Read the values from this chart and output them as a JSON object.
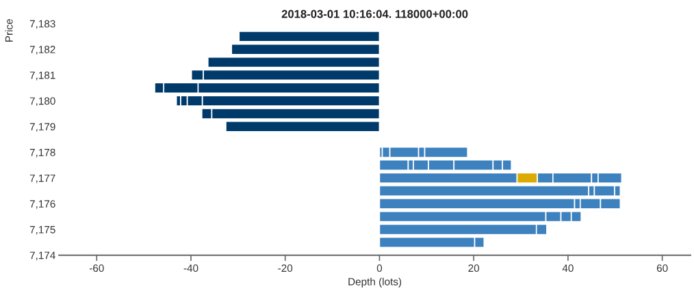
{
  "chart_data": {
    "type": "bar",
    "orientation": "horizontal",
    "stacked": true,
    "title": "2018-03-01 10:16:04. 118000+00:00",
    "xlabel": "Depth (lots)",
    "ylabel": "Price",
    "x": [
      7174.5,
      7175,
      7175.5,
      7176,
      7176.5,
      7177,
      7177.5,
      7178,
      7179,
      7179.5,
      7180,
      7180.5,
      7181,
      7181.5,
      7182,
      7182.5
    ],
    "series": [
      {
        "color": "#3d81be",
        "values": [
          20.2,
          33.3,
          35.3,
          41.4,
          44.4,
          29.2,
          6.1,
          0.6,
          null,
          null,
          null,
          null,
          null,
          null,
          null,
          null
        ]
      },
      {
        "colors": [
          "#3d81be",
          "#3d81be",
          "#3d81be",
          "#3d81be",
          "#3d81be",
          "#dcaa00",
          "#3d81be",
          "#3d81be",
          null,
          null,
          null,
          null,
          null,
          null,
          null,
          null
        ],
        "values": [
          2.0,
          2.2,
          3.2,
          1.2,
          1.2,
          4.3,
          1.1,
          1.6,
          null,
          null,
          null,
          null,
          null,
          null,
          null,
          null
        ]
      },
      {
        "color": "#3d81be",
        "values": [
          null,
          null,
          2.2,
          4.3,
          4.3,
          3.3,
          3.2,
          6.1,
          null,
          null,
          null,
          null,
          null,
          null,
          null,
          null
        ]
      },
      {
        "color": "#3d81be",
        "values": [
          null,
          null,
          2.1,
          4.2,
          1.2,
          8.2,
          5.4,
          1.3,
          null,
          null,
          null,
          null,
          null,
          null,
          null,
          null
        ]
      },
      {
        "color": "#3d81be",
        "values": [
          null,
          null,
          null,
          null,
          null,
          1.4,
          8.3,
          9.1,
          null,
          null,
          null,
          null,
          null,
          null,
          null,
          null
        ]
      },
      {
        "color": "#3d81be",
        "values": [
          null,
          null,
          null,
          null,
          null,
          5.0,
          2.0,
          null,
          null,
          null,
          null,
          null,
          null,
          null,
          null,
          null
        ]
      },
      {
        "color": "#3d81be",
        "values": [
          null,
          null,
          null,
          null,
          null,
          null,
          1.9,
          null,
          null,
          null,
          null,
          null,
          null,
          null,
          null,
          null
        ]
      },
      {
        "color": "#003a6b",
        "values": [
          null,
          null,
          null,
          null,
          null,
          null,
          null,
          null,
          -32.6,
          -35.6,
          -37.6,
          -38.5,
          -37.4,
          -36.4,
          -31.4,
          -29.8
        ]
      },
      {
        "color": "#003a6b",
        "values": [
          null,
          null,
          null,
          null,
          null,
          null,
          null,
          null,
          null,
          -2.1,
          -3.2,
          -7.3,
          -2.5,
          null,
          null,
          null
        ]
      },
      {
        "color": "#003a6b",
        "values": [
          null,
          null,
          null,
          null,
          null,
          null,
          null,
          null,
          null,
          null,
          -1.4,
          -1.9,
          null,
          null,
          null,
          null
        ]
      },
      {
        "color": "#003a6b",
        "values": [
          null,
          null,
          null,
          null,
          null,
          null,
          null,
          null,
          null,
          null,
          -0.9,
          null,
          null,
          null,
          null,
          null
        ]
      }
    ],
    "xlim": [
      -68,
      66
    ],
    "xticks": [
      -60,
      -40,
      -20,
      0,
      20,
      40,
      60
    ],
    "ylim": [
      7174,
      7183
    ],
    "yticks": [
      {
        "value": 7174,
        "label": "7,174"
      },
      {
        "value": 7175,
        "label": "7,175"
      },
      {
        "value": 7176,
        "label": "7,176"
      },
      {
        "value": 7177,
        "label": "7,177"
      },
      {
        "value": 7178,
        "label": "7,178"
      },
      {
        "value": 7179,
        "label": "7,179"
      },
      {
        "value": 7180,
        "label": "7,180"
      },
      {
        "value": 7181,
        "label": "7,181"
      },
      {
        "value": 7182,
        "label": "7,182"
      },
      {
        "value": 7183,
        "label": "7,183"
      }
    ],
    "grid": false,
    "legend": false
  }
}
